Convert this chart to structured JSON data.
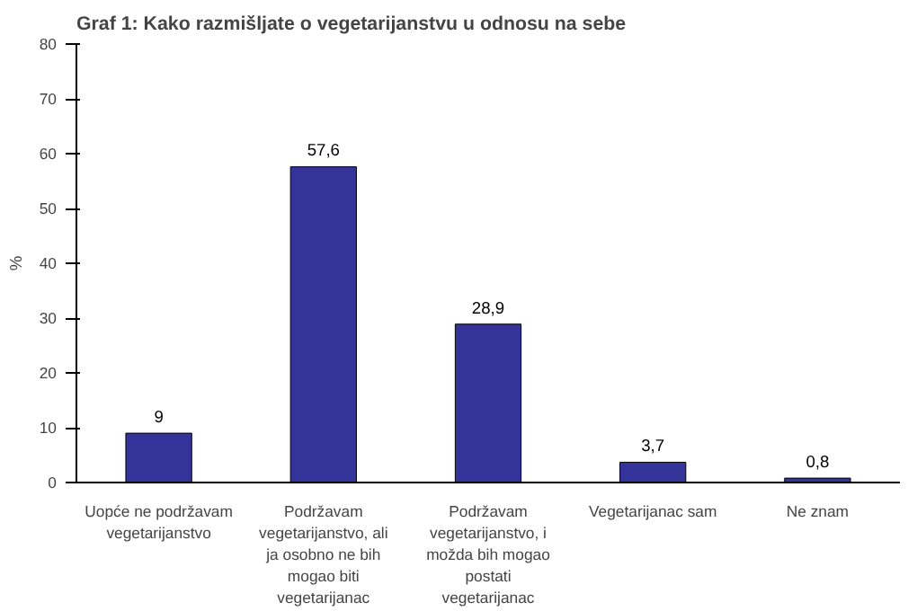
{
  "chart_data": {
    "type": "bar",
    "title": "Graf 1: Kako razmišljate o vegetarijanstvu u odnosu na sebe",
    "categories": [
      "Uopće ne podržavam vegetarijanstvo",
      "Podržavam vegetarijanstvo, ali ja osobno ne bih mogao biti vegetarijanac",
      "Podržavam vegetarijanstvo, i možda bih mogao postati vegetarijanac",
      "Vegetarijanac sam",
      "Ne znam"
    ],
    "values": [
      9,
      57.6,
      28.9,
      3.7,
      0.8
    ],
    "value_labels": [
      "9",
      "57,6",
      "28,9",
      "3,7",
      "0,8"
    ],
    "color": "#333399",
    "ylabel": "%",
    "ylim": [
      0,
      80
    ],
    "yticks": [
      0,
      10,
      20,
      30,
      40,
      50,
      60,
      70,
      80
    ],
    "grid": false
  }
}
